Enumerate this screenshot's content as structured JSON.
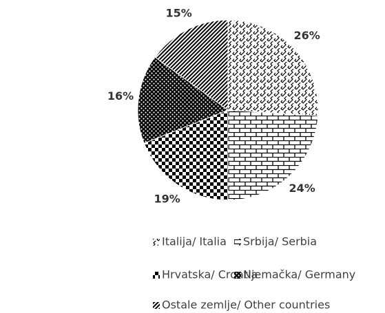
{
  "chart_data": {
    "type": "pie",
    "categories": [
      "Italija/ Italia",
      "Srbija/ Serbia",
      "Hrvatska/ Croatia",
      "Njemačka/ Germany",
      "Ostale zemlje/ Other countries"
    ],
    "values": [
      26,
      24,
      19,
      16,
      15
    ],
    "value_labels": [
      "26%",
      "24%",
      "19%",
      "16%",
      "15%"
    ]
  }
}
